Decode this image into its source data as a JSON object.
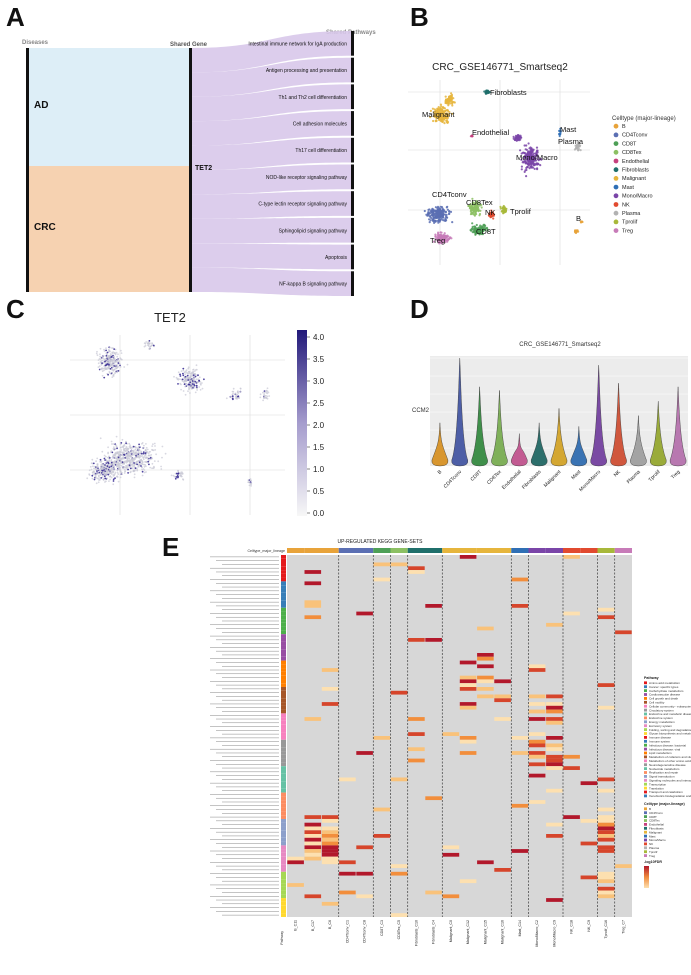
{
  "panels": {
    "a": {
      "letter": "A"
    },
    "b": {
      "letter": "B"
    },
    "c": {
      "letter": "C"
    },
    "d": {
      "letter": "D"
    },
    "e": {
      "letter": "E"
    }
  },
  "sankey": {
    "col_diseases": "Diseases",
    "col_gene": "Shared Gene",
    "col_pathways": "Shared Pathways",
    "diseases": [
      "AD",
      "CRC"
    ],
    "gene": "TET2",
    "pathways": [
      "Intestinal immune network for IgA production",
      "Antigen processing and presentation",
      "Th1 and Th2 cell differentiation",
      "Cell adhesion molecules",
      "Th17 cell differentiation",
      "NOD-like receptor signaling pathway",
      "C-type lectin receptor signaling pathway",
      "Sphingolipid signaling pathway",
      "Apoptosis",
      "NF-kappa B signaling pathway"
    ],
    "colors": {
      "ad": "#ddeef7",
      "crc": "#f6d2b1",
      "flow": "#d8c8ea"
    }
  },
  "umap_b": {
    "title": "CRC_GSE146771_Smartseq2",
    "legend_title": "Celltype (major-lineage)",
    "celltypes": [
      {
        "name": "B",
        "color": "#e8a33a"
      },
      {
        "name": "CD4Tconv",
        "color": "#5b6fb3"
      },
      {
        "name": "CD8T",
        "color": "#4d9f56"
      },
      {
        "name": "CD8Tex",
        "color": "#8cc063"
      },
      {
        "name": "Endothelial",
        "color": "#c6407e"
      },
      {
        "name": "Fibroblasts",
        "color": "#1f6f6b"
      },
      {
        "name": "Malignant",
        "color": "#e6b53c"
      },
      {
        "name": "Mast",
        "color": "#2f6fb5"
      },
      {
        "name": "Mono/Macro",
        "color": "#7a45a8"
      },
      {
        "name": "NK",
        "color": "#e14a2f"
      },
      {
        "name": "Plasma",
        "color": "#b2b2b2"
      },
      {
        "name": "Tprolif",
        "color": "#a8b83a"
      },
      {
        "name": "Treg",
        "color": "#c77bb8"
      }
    ],
    "cluster_labels": [
      "Fibroblasts",
      "Malignant",
      "Endothelial",
      "Mast",
      "Plasma",
      "Mono/Macro",
      "CD4Tconv",
      "CD8Tex",
      "NK",
      "Tprolif",
      "CD8T",
      "Treg",
      "B"
    ]
  },
  "umap_c": {
    "title": "TET2",
    "colorbar_ticks": [
      "4.0",
      "3.5",
      "3.0",
      "2.5",
      "2.0",
      "1.5",
      "1.0",
      "0.5",
      "0.0"
    ]
  },
  "chart_data": {
    "type": "violin",
    "title": "CRC_GSE146771_Smartseq2",
    "ylabel": "CCM2",
    "categories": [
      "B",
      "CD4Tconv",
      "CD8T",
      "CD8Tex",
      "Endothelial",
      "Fibroblasts",
      "Malignant",
      "Mast",
      "Mono/Macro",
      "NK",
      "Plasma",
      "Tprolif",
      "Treg"
    ],
    "max_values": [
      1.2,
      3.0,
      2.2,
      2.1,
      0.9,
      1.2,
      1.6,
      1.1,
      2.8,
      2.3,
      1.4,
      1.8,
      2.2
    ],
    "ylim": [
      0,
      3.0
    ],
    "colors": [
      "#d8962f",
      "#4d5ea6",
      "#3f8f4a",
      "#7fb05a",
      "#c25b92",
      "#2c6e6b",
      "#d4a732",
      "#3a73b3",
      "#7a4aa3",
      "#d0573d",
      "#a3a3a3",
      "#9aab3a",
      "#b878b0"
    ]
  },
  "heatmap_e": {
    "title": "UP-REGULATED KEGG GENE-SETS",
    "header_label": "Celltype_major_lineage",
    "row_axis_label": "Pathway",
    "columns": [
      "B_C11",
      "B_C17",
      "B_C6",
      "CD4Tconv_C1",
      "CD4Tconv_C8",
      "CD8T_C3",
      "CD8Tex_C5",
      "Fibroblasts_C10",
      "Fibroblasts_C4",
      "Malignant_C0",
      "Malignant_C12",
      "Malignant_C15",
      "Malignant_C16",
      "Mast_C14",
      "Mono/Macro_C2",
      "Mono/Macro_C9",
      "NK_C18",
      "NK_C9",
      "Tprolif_C16",
      "Treg_C7"
    ],
    "pathway_legend_title": "Pathway",
    "pathway_classes": [
      "Amino acid metabolism",
      "Cancer: specific types",
      "Carbohydrate metabolism",
      "Cardiovascular disease",
      "Cell growth and death",
      "Cell motility",
      "Cellular community - eukaryotes",
      "Circulatory system",
      "Endocrine and metabolic disease",
      "Endocrine system",
      "Energy metabolism",
      "Excretory system",
      "Folding, sorting and degradation",
      "Glycan biosynthesis and metabolism",
      "Immune disease",
      "Immune system",
      "Infectious disease: bacterial",
      "Infectious disease: viral",
      "Lipid metabolism",
      "Metabolism of cofactors and vitamins",
      "Metabolism of other amino acids",
      "Neurodegenerative disease",
      "Nucleotide metabolism",
      "Replication and repair",
      "Signal transduction",
      "Signaling molecules and interaction",
      "Transcription",
      "Translation",
      "Transport and catabolism",
      "Xenobiotics biodegradation and metabolism"
    ],
    "celltype_legend_title": "Celltype (major-lineage)",
    "scale_title": "-log10FDR"
  }
}
